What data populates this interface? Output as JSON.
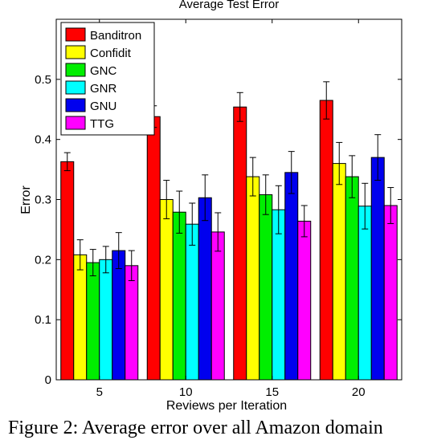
{
  "chart_data": {
    "type": "bar",
    "title": "Average Test Error",
    "xlabel": "Reviews per Iteration",
    "ylabel": "Error",
    "categories": [
      "5",
      "10",
      "15",
      "20"
    ],
    "ylim": [
      0,
      0.6
    ],
    "yticks": [
      0,
      0.1,
      0.2,
      0.3,
      0.4,
      0.5
    ],
    "ytick_labels": [
      "0",
      "0.1",
      "0.2",
      "0.3",
      "0.4",
      "0.5"
    ],
    "error_bars": true,
    "grid": false,
    "legend_position": "top-left",
    "series": [
      {
        "name": "Banditron",
        "color": "#ff0000",
        "values": [
          0.363,
          0.438,
          0.454,
          0.465
        ],
        "errors": [
          0.015,
          0.018,
          0.024,
          0.031
        ]
      },
      {
        "name": "Confidit",
        "color": "#ffff00",
        "values": [
          0.208,
          0.3,
          0.338,
          0.36
        ],
        "errors": [
          0.025,
          0.032,
          0.032,
          0.035
        ]
      },
      {
        "name": "GNC",
        "color": "#00ee00",
        "values": [
          0.195,
          0.279,
          0.308,
          0.338
        ],
        "errors": [
          0.022,
          0.035,
          0.033,
          0.035
        ]
      },
      {
        "name": "GNR",
        "color": "#00ffff",
        "values": [
          0.2,
          0.259,
          0.283,
          0.289
        ],
        "errors": [
          0.022,
          0.035,
          0.04,
          0.038
        ]
      },
      {
        "name": "GNU",
        "color": "#0000ee",
        "values": [
          0.215,
          0.303,
          0.345,
          0.37
        ],
        "errors": [
          0.03,
          0.038,
          0.035,
          0.038
        ]
      },
      {
        "name": "TTG",
        "color": "#ff00ff",
        "values": [
          0.19,
          0.246,
          0.264,
          0.29
        ],
        "errors": [
          0.025,
          0.032,
          0.026,
          0.03
        ]
      }
    ]
  },
  "caption": "Figure 2: Average error over all Amazon domain"
}
